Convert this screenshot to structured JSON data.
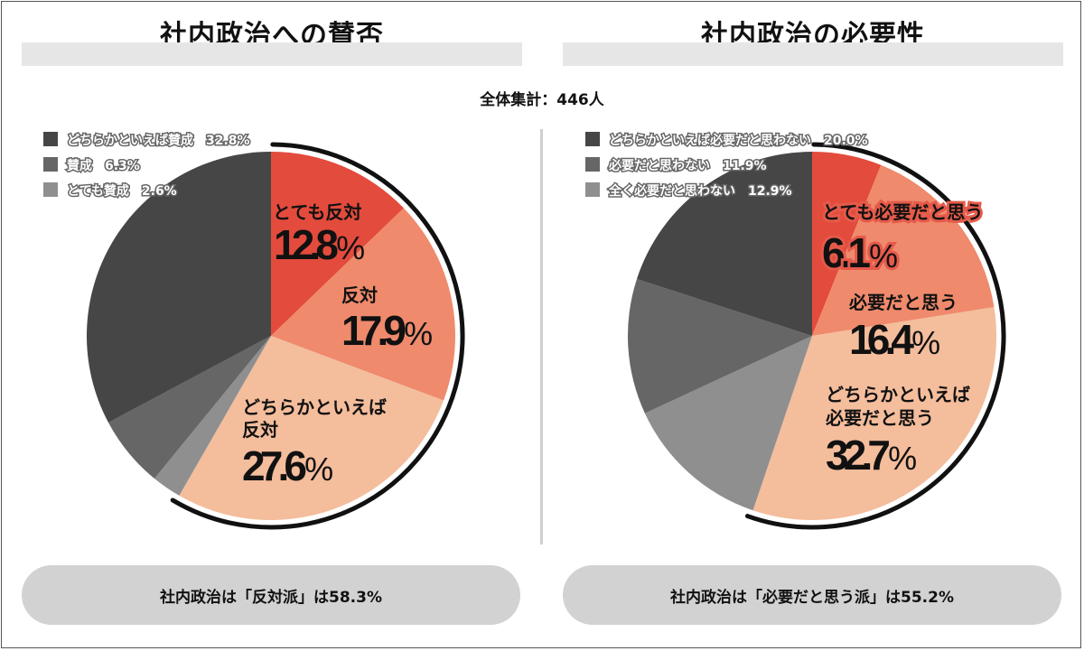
{
  "total": "全体集計：446人",
  "left": {
    "title": "社内政治への賛否",
    "footer": "社内政治は「反対派」は58.3%"
  },
  "right": {
    "title": "社内政治の必要性",
    "footer": "社内政治は「必要だと思う派」は55.2%"
  },
  "colors": {
    "very_red": "#e34b3c",
    "mid_red": "#ef8a6c",
    "light_peach": "#f4bd9c",
    "dark_gray": "#464646",
    "mid_gray": "#666666",
    "light_gray": "#8f8f8f"
  },
  "chart_data": [
    {
      "type": "pie",
      "title": "社内政治への賛否",
      "slices": [
        {
          "label": "とても反対",
          "value": 12.8,
          "color": "#e34b3c",
          "display": "inside"
        },
        {
          "label": "反対",
          "value": 17.9,
          "color": "#ef8a6c",
          "display": "inside"
        },
        {
          "label": "どちらかといえば反対",
          "value": 27.6,
          "color": "#f4bd9c",
          "display": "inside",
          "label_lines": [
            "どちらかといえば",
            "反対"
          ]
        },
        {
          "label": "とても賛成",
          "value": 2.6,
          "color": "#8f8f8f",
          "display": "legend"
        },
        {
          "label": "賛成",
          "value": 6.3,
          "color": "#666666",
          "display": "legend"
        },
        {
          "label": "どちらかといえば賛成",
          "value": 32.8,
          "color": "#464646",
          "display": "legend"
        }
      ],
      "legend": [
        "どちらかといえば賛成　32.8%",
        "賛成　6.3%",
        "とても賛成　2.6%"
      ],
      "legend_colors": [
        "#464646",
        "#666666",
        "#8f8f8f"
      ]
    },
    {
      "type": "pie",
      "title": "社内政治の必要性",
      "slices": [
        {
          "label": "とても必要だと思う",
          "value": 6.1,
          "color": "#e34b3c",
          "display": "inside"
        },
        {
          "label": "必要だと思う",
          "value": 16.4,
          "color": "#ef8a6c",
          "display": "inside"
        },
        {
          "label": "どちらかといえば必要だと思う",
          "value": 32.7,
          "color": "#f4bd9c",
          "display": "inside",
          "label_lines": [
            "どちらかといえば",
            "必要だと思う"
          ]
        },
        {
          "label": "全く必要だと思わない",
          "value": 12.9,
          "color": "#8f8f8f",
          "display": "legend"
        },
        {
          "label": "必要だと思わない",
          "value": 11.9,
          "color": "#666666",
          "display": "legend"
        },
        {
          "label": "どちらかといえば必要だと思わない",
          "value": 20.0,
          "color": "#464646",
          "display": "legend"
        }
      ],
      "legend": [
        "どちらかといえば必要だと思わない　20.0%",
        "必要だと思わない　11.9%",
        "全く必要だと思わない　12.9%"
      ],
      "legend_colors": [
        "#464646",
        "#666666",
        "#8f8f8f"
      ]
    }
  ]
}
